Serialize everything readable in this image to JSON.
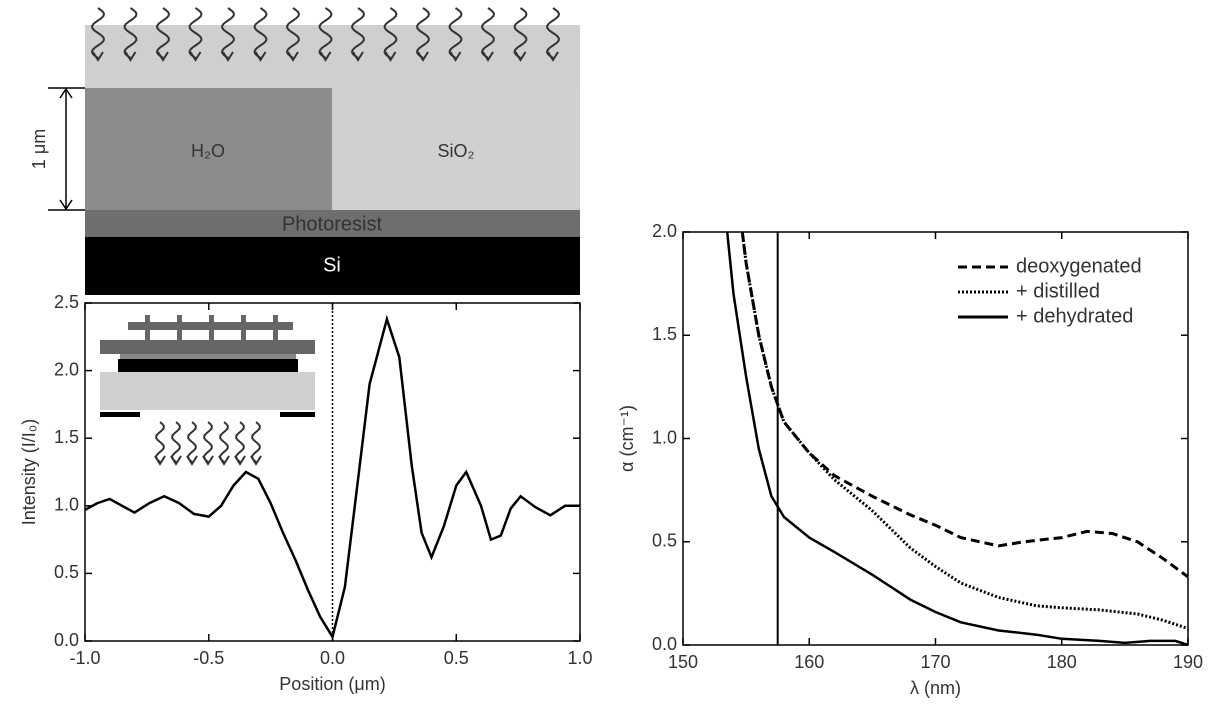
{
  "diagram": {
    "layers": {
      "water": "H₂O",
      "oxide": "SiO₂",
      "resist": "Photoresist",
      "substrate": "Si"
    },
    "scale": "1 μm"
  },
  "chart_data": [
    {
      "type": "line",
      "xlabel": "Position (μm)",
      "ylabel": "Intensity (I/I₀)",
      "xlim": [
        -1,
        1
      ],
      "ylim": [
        0,
        2.5
      ],
      "xticks": [
        {
          "value": -1,
          "label": "-1.0"
        },
        {
          "value": -0.5,
          "label": "-0.5"
        },
        {
          "value": 0,
          "label": "0.0"
        },
        {
          "value": 0.5,
          "label": "0.5"
        },
        {
          "value": 1,
          "label": "1.0"
        }
      ],
      "yticks": [
        {
          "value": 0,
          "label": "0.0"
        },
        {
          "value": 0.5,
          "label": "0.5"
        },
        {
          "value": 1,
          "label": "1.0"
        },
        {
          "value": 1.5,
          "label": "1.5"
        },
        {
          "value": 2,
          "label": "2.0"
        },
        {
          "value": 2.5,
          "label": "2.5"
        }
      ],
      "vline": 0,
      "series": [
        {
          "color": "#000000",
          "style": "solid",
          "x": [
            -1,
            -0.95,
            -0.9,
            -0.85,
            -0.8,
            -0.74,
            -0.68,
            -0.62,
            -0.56,
            -0.5,
            -0.45,
            -0.4,
            -0.35,
            -0.3,
            -0.25,
            -0.2,
            -0.15,
            -0.1,
            -0.05,
            0,
            0.05,
            0.1,
            0.15,
            0.22,
            0.27,
            0.32,
            0.36,
            0.4,
            0.45,
            0.5,
            0.54,
            0.6,
            0.64,
            0.68,
            0.72,
            0.76,
            0.82,
            0.88,
            0.94,
            1
          ],
          "values": [
            0.97,
            1.02,
            1.05,
            1.0,
            0.95,
            1.02,
            1.07,
            1.02,
            0.94,
            0.92,
            1.0,
            1.15,
            1.25,
            1.2,
            1.02,
            0.8,
            0.6,
            0.38,
            0.18,
            0.03,
            0.4,
            1.15,
            1.9,
            2.38,
            2.1,
            1.3,
            0.8,
            0.62,
            0.85,
            1.15,
            1.25,
            1.0,
            0.75,
            0.78,
            0.98,
            1.07,
            0.99,
            0.93,
            1.0,
            1.0
          ]
        }
      ]
    },
    {
      "type": "line",
      "xlabel": "λ (nm)",
      "ylabel": "α (cm⁻¹)",
      "xlim": [
        150,
        190
      ],
      "ylim": [
        0,
        2
      ],
      "xticks": [
        150,
        160,
        170,
        180,
        190
      ],
      "yticks": [
        {
          "value": 0,
          "label": "0.0"
        },
        {
          "value": 0.5,
          "label": "0.5"
        },
        {
          "value": 1,
          "label": "1.0"
        },
        {
          "value": 1.5,
          "label": "1.5"
        },
        {
          "value": 2,
          "label": "2.0"
        }
      ],
      "vline": 157.5,
      "legend": "upper right",
      "series": [
        {
          "name": "deoxygenated",
          "color": "#000000",
          "style": "dashed",
          "x": [
            154.7,
            155,
            156,
            157,
            158,
            160,
            162,
            165,
            168,
            170,
            172,
            175,
            177,
            180,
            182,
            184,
            186,
            188,
            190
          ],
          "values": [
            2.0,
            1.85,
            1.5,
            1.25,
            1.08,
            0.93,
            0.82,
            0.72,
            0.63,
            0.58,
            0.52,
            0.48,
            0.5,
            0.52,
            0.55,
            0.54,
            0.5,
            0.42,
            0.33
          ]
        },
        {
          "name": "+ distilled",
          "color": "#000000",
          "style": "dotted",
          "x": [
            154.7,
            155,
            156,
            157,
            158,
            160,
            162,
            165,
            168,
            170,
            172,
            175,
            178,
            180,
            183,
            186,
            188,
            190
          ],
          "values": [
            2.0,
            1.85,
            1.5,
            1.25,
            1.08,
            0.93,
            0.8,
            0.65,
            0.47,
            0.38,
            0.3,
            0.23,
            0.19,
            0.18,
            0.17,
            0.15,
            0.12,
            0.08
          ]
        },
        {
          "name": "+ dehydrated",
          "color": "#000000",
          "style": "solid",
          "x": [
            153.5,
            154,
            155,
            156,
            157,
            158,
            160,
            162,
            165,
            168,
            170,
            172,
            175,
            178,
            180,
            183,
            185,
            187,
            189,
            190
          ],
          "values": [
            2.0,
            1.7,
            1.3,
            0.95,
            0.72,
            0.62,
            0.52,
            0.45,
            0.34,
            0.22,
            0.16,
            0.11,
            0.07,
            0.05,
            0.03,
            0.02,
            0.01,
            0.02,
            0.02,
            0.0
          ]
        }
      ]
    }
  ]
}
